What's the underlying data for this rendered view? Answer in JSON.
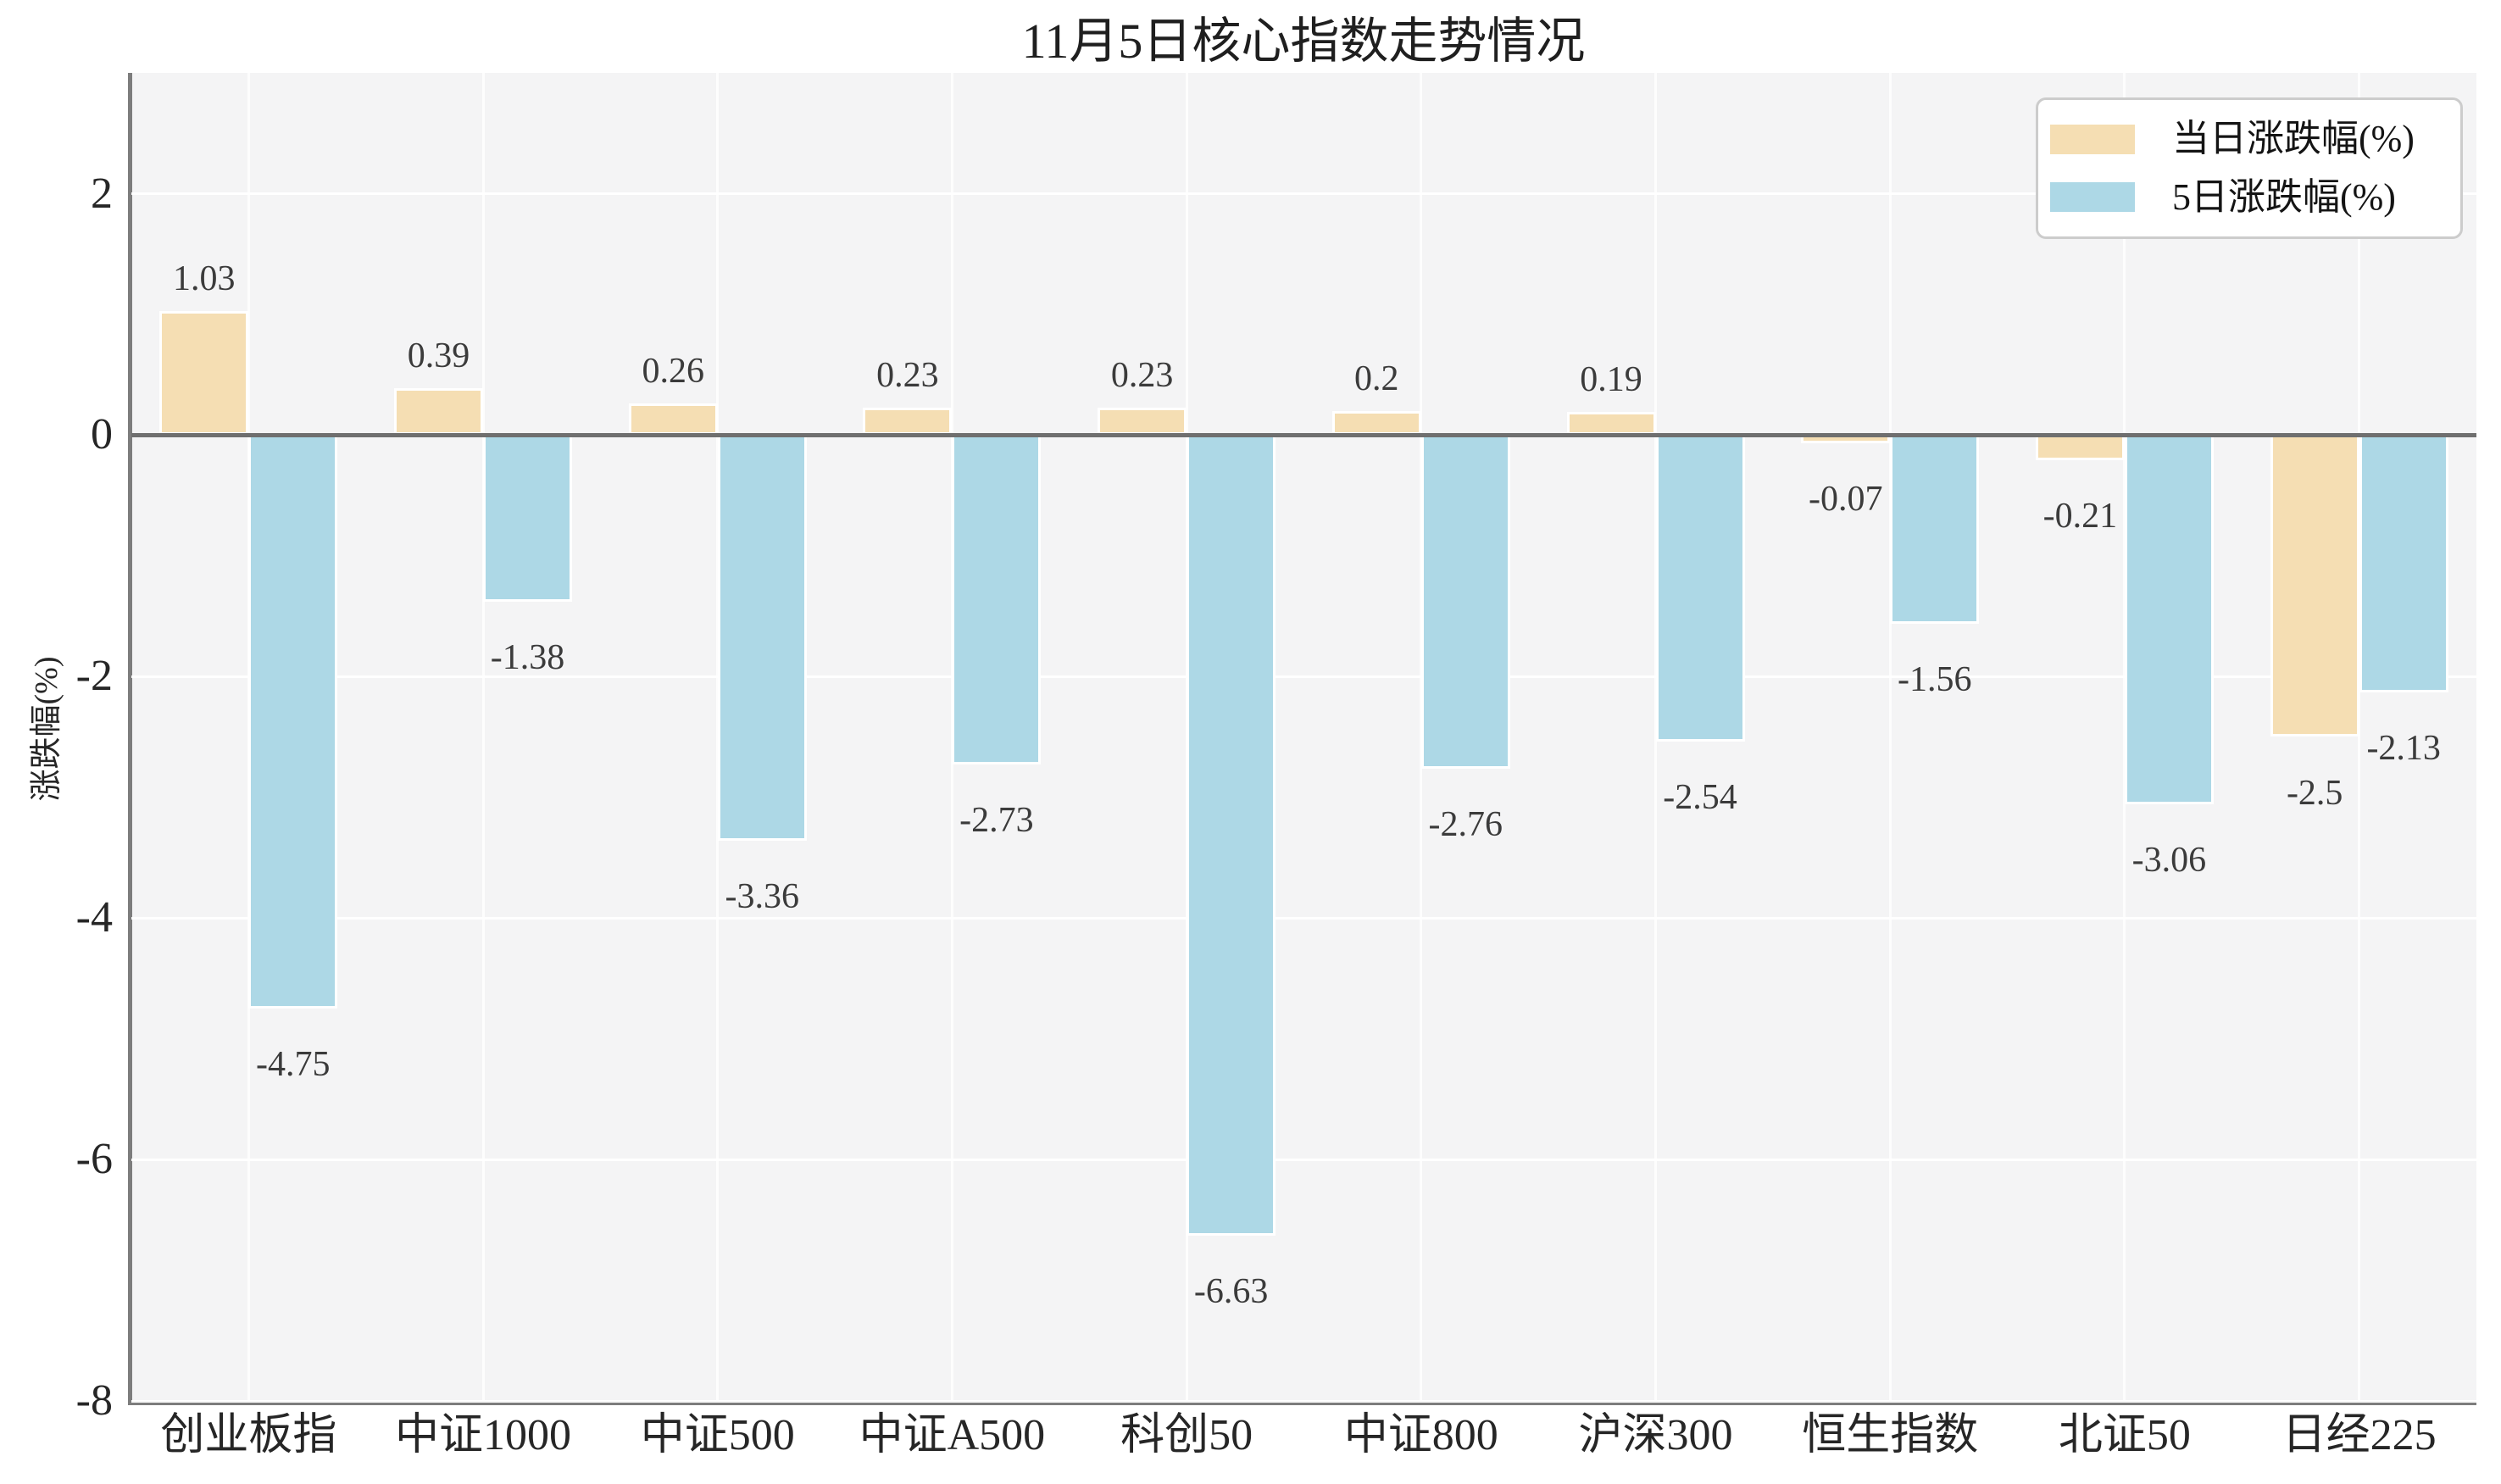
{
  "title": "11月5日核心指数走势情况",
  "ylabel": "涨跌幅(%)",
  "legend": [
    {
      "label": "当日涨跌幅(%)",
      "color": "#f5deb3"
    },
    {
      "label": "5日涨跌幅(%)",
      "color": "#add8e6"
    }
  ],
  "colors": {
    "plot_background": "#f4f4f5",
    "figure_background": "#ffffff",
    "zero_line": "#6f6f6f",
    "spine": "#7d7d7d",
    "grid": "#ffffff"
  },
  "chart_data": {
    "type": "bar",
    "title": "11月5日核心指数走势情况",
    "xlabel": "",
    "ylabel": "涨跌幅(%)",
    "categories": [
      "创业板指",
      "中证1000",
      "中证500",
      "中证A500",
      "科创50",
      "中证800",
      "沪深300",
      "恒生指数",
      "北证50",
      "日经225"
    ],
    "series": [
      {
        "name": "当日涨跌幅(%)",
        "color": "#f5deb3",
        "values": [
          1.03,
          0.39,
          0.26,
          0.23,
          0.23,
          0.2,
          0.19,
          -0.07,
          -0.21,
          -2.5
        ]
      },
      {
        "name": "5日涨跌幅(%)",
        "color": "#add8e6",
        "values": [
          -4.75,
          -1.38,
          -3.36,
          -2.73,
          -6.63,
          -2.76,
          -2.54,
          -1.56,
          -3.06,
          -2.13
        ]
      }
    ],
    "yticks": [
      2,
      0,
      -2,
      -4,
      -6,
      -8
    ],
    "ylim": [
      -8,
      3
    ],
    "grid": true,
    "bar_edge_color": "#ffffff",
    "legend_position": "upper right"
  }
}
